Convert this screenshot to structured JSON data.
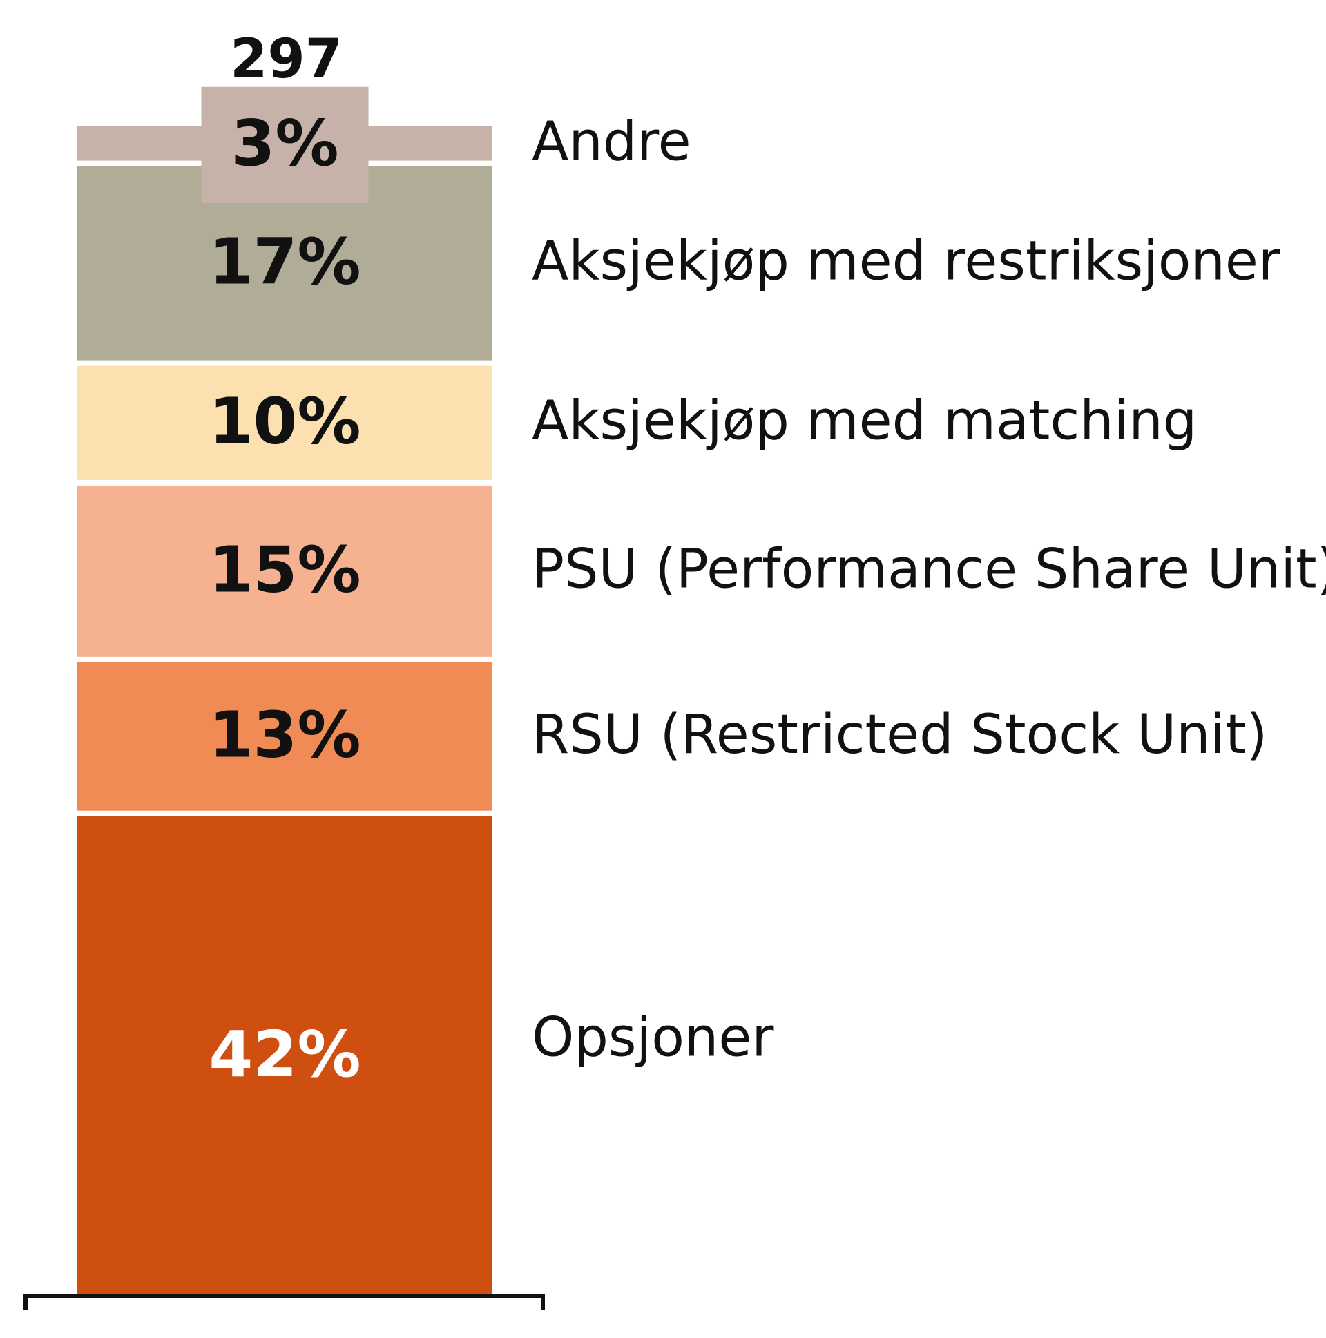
{
  "chart_data": {
    "type": "bar",
    "stacked": true,
    "categories": [
      ""
    ],
    "total": "297",
    "legend_placement": "right",
    "grid": false,
    "ylim": [
      0,
      100
    ],
    "series": [
      {
        "name": "Opsjoner",
        "values": [
          42
        ],
        "label": "42%",
        "color": "#cf4f10",
        "label_color": "#ffffff"
      },
      {
        "name": "RSU (Restricted Stock Unit)",
        "values": [
          13
        ],
        "label": "13%",
        "color": "#f08b55",
        "label_color": "#111111"
      },
      {
        "name": "PSU (Performance Share Unit)",
        "values": [
          15
        ],
        "label": "15%",
        "color": "#f6b190",
        "label_color": "#111111"
      },
      {
        "name": "Aksjekjøp med matching",
        "values": [
          10
        ],
        "label": "10%",
        "color": "#fce0b0",
        "label_color": "#111111"
      },
      {
        "name": "Aksjekjøp med restriksjoner",
        "values": [
          17
        ],
        "label": "17%",
        "color": "#b1ac98",
        "label_color": "#111111"
      },
      {
        "name": "Andre",
        "values": [
          3
        ],
        "label": "3%",
        "color": "#c6b2a8",
        "label_color": "#111111"
      }
    ]
  }
}
